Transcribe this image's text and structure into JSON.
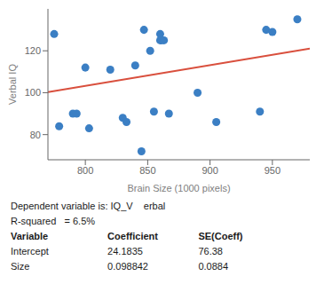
{
  "chart_data": {
    "type": "scatter",
    "xlabel": "Brain Size (1000 pixels)",
    "ylabel": "Verbal IQ",
    "xlim": [
      770,
      980
    ],
    "ylim": [
      68,
      140
    ],
    "xticks": [
      800,
      850,
      900,
      950
    ],
    "yticks": [
      80,
      100,
      120
    ],
    "grid": false,
    "series": [
      {
        "type": "scatter",
        "color": "#3b7fc4",
        "x": [
          775,
          779,
          790,
          793,
          800,
          803,
          820,
          830,
          833,
          840,
          845,
          847,
          852,
          855,
          860,
          860,
          861,
          863,
          867,
          890,
          905,
          940,
          945,
          950,
          970
        ],
        "values": [
          128,
          84,
          90,
          90,
          112,
          83,
          111,
          88,
          86,
          113,
          72,
          130,
          120,
          91,
          128,
          125,
          125,
          125,
          90,
          100,
          86,
          91,
          130,
          129,
          135
        ]
      },
      {
        "type": "line",
        "color": "#d94f3d",
        "x": [
          770,
          980
        ],
        "values": [
          100.29184,
          121.04866
        ]
      }
    ],
    "annotations": [
      "Dependent variable is: IQ_V    erbal",
      "R-squared   = 6.5%"
    ],
    "table": {
      "headers": [
        "Variable",
        "Coefficient",
        "SE(Coeff)"
      ],
      "rows": [
        [
          "Intercept",
          "24.1835",
          "76.38"
        ],
        [
          "Size",
          "0.098842",
          "0.0884"
        ]
      ]
    }
  }
}
